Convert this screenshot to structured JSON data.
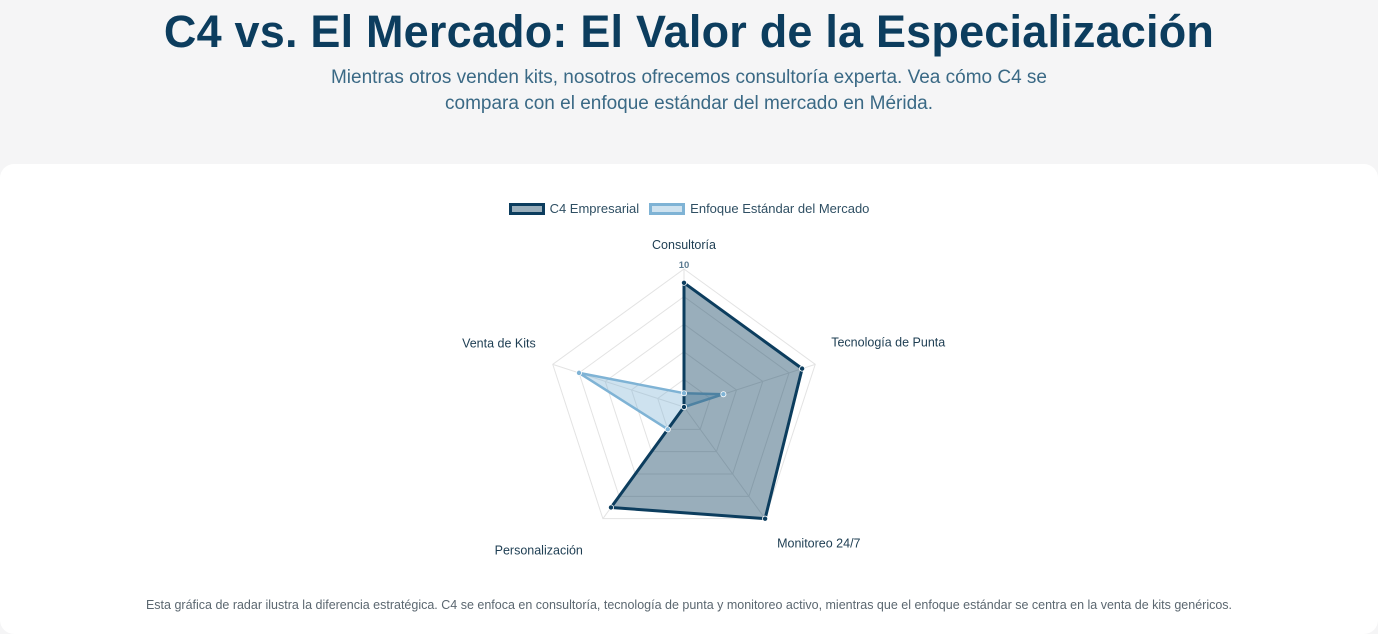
{
  "header": {
    "title": "C4 vs. El Mercado: El Valor de la Especialización",
    "subtitle": "Mientras otros venden kits, nosotros ofrecemos consultoría experta. Vea cómo C4 se compara con el enfoque estándar del mercado en Mérida."
  },
  "chart_data": {
    "type": "radar",
    "axes": [
      "Consultoría",
      "Tecnología de Punta",
      "Monitoreo 24/7",
      "Personalización",
      "Venta de Kits"
    ],
    "scale": {
      "min": 0,
      "max": 10,
      "step": 2,
      "tick_labels": [
        "10"
      ]
    },
    "series": [
      {
        "name": "C4 Empresarial",
        "values": [
          9,
          9,
          10,
          9,
          0
        ],
        "stroke": "#0c3d5e",
        "fill": "rgba(12,61,94,0.42)"
      },
      {
        "name": "Enfoque Estándar del Mercado",
        "values": [
          1,
          3,
          0,
          2,
          8
        ],
        "stroke": "#7fb3d5",
        "fill": "rgba(127,179,213,0.38)"
      }
    ],
    "legend_position": "top",
    "grid": true
  },
  "caption": "Esta gráfica de radar ilustra la diferencia estratégica. C4 se enfoca en consultoría, tecnología de punta y monitoreo activo, mientras que el enfoque estándar se centra en la venta de kits genéricos."
}
